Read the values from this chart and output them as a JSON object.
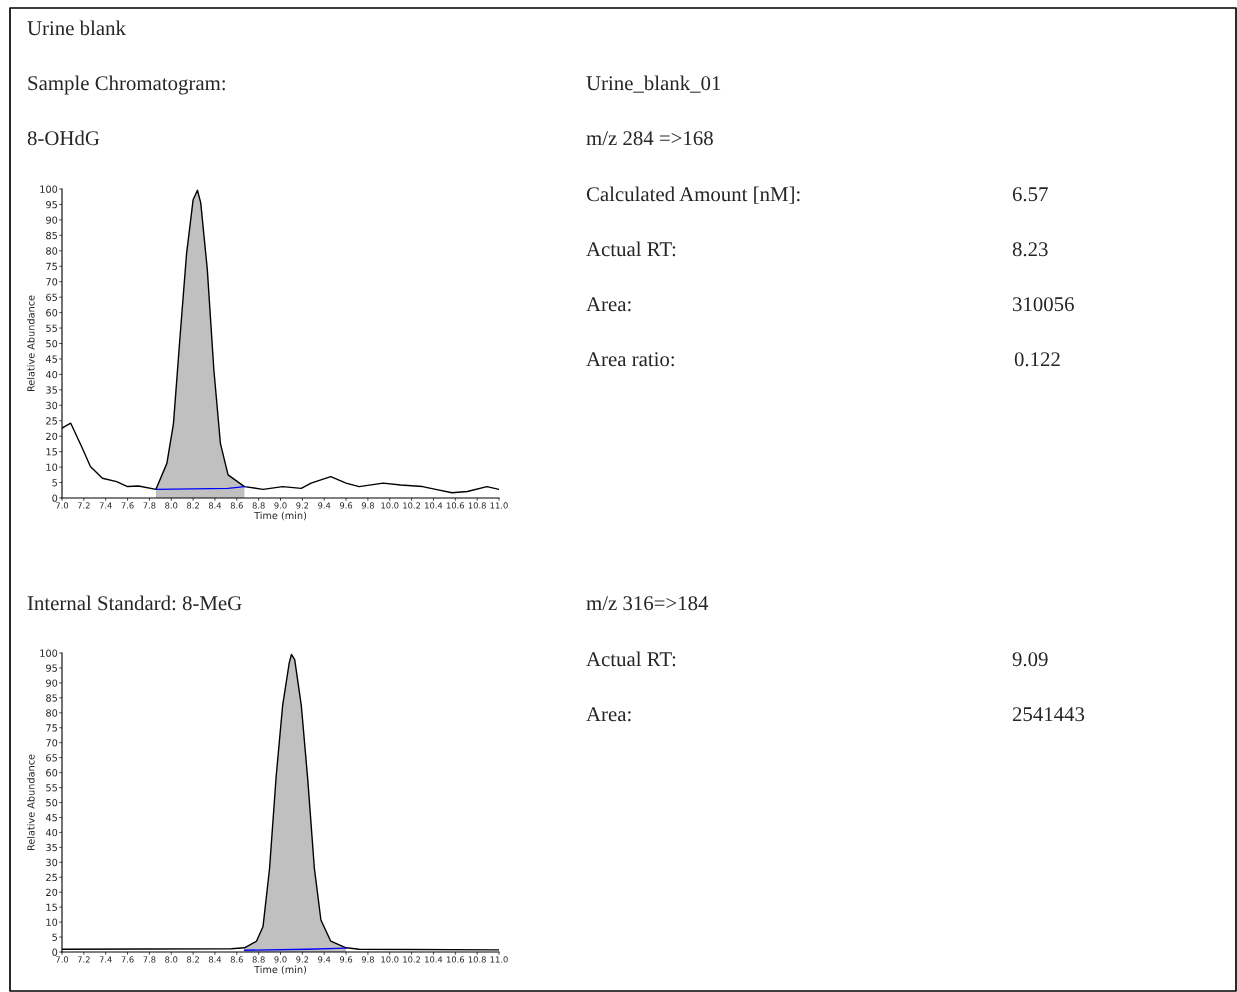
{
  "chart_data": [
    {
      "type": "line",
      "title": "8-OHdG",
      "xlabel": "Time (min)",
      "ylabel": "Relative Abundance",
      "annotations": [
        "Urine blank",
        "Sample Chromatogram:",
        "Urine_blank_01",
        "m/z 284 =>168",
        "Calculated Amount [nM]:",
        "6.57",
        "Actual RT:",
        "8.23",
        "Area:",
        "310056",
        "Area ratio:",
        "0.122"
      ],
      "xlim": [
        7.0,
        11.0
      ],
      "xticks": [
        {
          "value": 7,
          "label": "7.0"
        },
        7.2,
        7.4,
        7.6,
        7.8,
        {
          "value": 8,
          "label": "8.0"
        },
        8.2,
        8.4,
        8.6,
        8.8,
        {
          "value": 9,
          "label": "9.0"
        },
        9.2,
        9.4,
        9.6,
        9.8,
        {
          "value": 10,
          "label": "10.0"
        },
        10.2,
        10.4,
        10.6,
        10.8,
        {
          "value": 11,
          "label": "11.0"
        }
      ],
      "ylim": [
        0,
        100
      ],
      "yticks": [
        0,
        5,
        10,
        15,
        20,
        25,
        30,
        35,
        40,
        45,
        50,
        55,
        60,
        65,
        70,
        75,
        80,
        85,
        90,
        95,
        100
      ],
      "grid": false,
      "series": [
        {
          "type": "area",
          "color": "#c0c0c0",
          "x": [
            7.86,
            7.96,
            8.02,
            8.08,
            8.14,
            8.2,
            8.24,
            8.27,
            8.33,
            8.39,
            8.45,
            8.52,
            8.67
          ],
          "values": [
            2.8,
            11.2,
            24,
            52,
            79,
            96.5,
            99.6,
            95.5,
            74,
            41.5,
            17.7,
            7.5,
            3.7
          ]
        },
        {
          "type": "line",
          "color": "#000000",
          "x": [
            7.0,
            7.08,
            7.18,
            7.26,
            7.37,
            7.5,
            7.6,
            7.7,
            7.86,
            7.96,
            8.02,
            8.08,
            8.14,
            8.2,
            8.24,
            8.27,
            8.33,
            8.39,
            8.45,
            8.52,
            8.67,
            8.84,
            9.02,
            9.19,
            9.28,
            9.46,
            9.6,
            9.72,
            9.94,
            10.1,
            10.3,
            10.42,
            10.57,
            10.71,
            10.89,
            11.0
          ],
          "values": [
            22.6,
            24.2,
            16.6,
            10.2,
            6.4,
            5.3,
            3.7,
            3.9,
            2.8,
            11.2,
            24,
            52,
            79,
            96.5,
            99.6,
            95.5,
            74,
            41.5,
            17.7,
            7.5,
            3.7,
            2.8,
            3.7,
            3.1,
            4.8,
            6.9,
            4.8,
            3.7,
            4.8,
            4.2,
            3.7,
            2.8,
            1.7,
            2.1,
            3.7,
            2.8
          ]
        },
        {
          "type": "line",
          "color": "#0000ff",
          "x": [
            7.86,
            8.52,
            8.67
          ],
          "values": [
            2.8,
            3.1,
            3.7
          ]
        }
      ]
    },
    {
      "type": "line",
      "title": "Internal Standard: 8-MeG",
      "xlabel": "Time (min)",
      "ylabel": "Relative Abundance",
      "annotations": [
        "m/z 316=>184",
        "Actual RT:",
        "9.09",
        "Area:",
        "2541443"
      ],
      "xlim": [
        7.0,
        11.0
      ],
      "xticks": [
        {
          "value": 7,
          "label": "7.0"
        },
        7.2,
        7.4,
        7.6,
        7.8,
        {
          "value": 8,
          "label": "8.0"
        },
        8.2,
        8.4,
        8.6,
        8.8,
        {
          "value": 9,
          "label": "9.0"
        },
        9.2,
        9.4,
        9.6,
        9.8,
        {
          "value": 10,
          "label": "10.0"
        },
        10.2,
        10.4,
        10.6,
        10.8,
        {
          "value": 11,
          "label": "11.0"
        }
      ],
      "ylim": [
        0,
        100
      ],
      "yticks": [
        0,
        5,
        10,
        15,
        20,
        25,
        30,
        35,
        40,
        45,
        50,
        55,
        60,
        65,
        70,
        75,
        80,
        85,
        90,
        95,
        100
      ],
      "grid": false,
      "series": [
        {
          "type": "area",
          "color": "#c0c0c0",
          "x": [
            8.67,
            8.78,
            8.84,
            8.9,
            8.96,
            9.02,
            9.08,
            9.1,
            9.13,
            9.19,
            9.25,
            9.31,
            9.37,
            9.46,
            9.6
          ],
          "values": [
            1.4,
            3.6,
            8.5,
            28,
            58.6,
            82.6,
            96.7,
            99.5,
            97.8,
            82.6,
            57.5,
            28,
            10.7,
            3.6,
            1.4
          ]
        },
        {
          "type": "line",
          "color": "#000000",
          "x": [
            7.0,
            8.55,
            8.67,
            8.78,
            8.84,
            8.9,
            8.96,
            9.02,
            9.08,
            9.1,
            9.13,
            9.19,
            9.25,
            9.31,
            9.37,
            9.46,
            9.6,
            9.72,
            11.0
          ],
          "values": [
            0.9,
            1.1,
            1.4,
            3.6,
            8.5,
            28,
            58.6,
            82.6,
            96.7,
            99.5,
            97.8,
            82.6,
            57.5,
            28,
            10.7,
            3.6,
            1.4,
            0.9,
            0.7
          ]
        },
        {
          "type": "line",
          "color": "#0000ff",
          "x": [
            8.67,
            9.25,
            9.6
          ],
          "values": [
            0.6,
            0.9,
            1.3
          ]
        }
      ]
    }
  ]
}
